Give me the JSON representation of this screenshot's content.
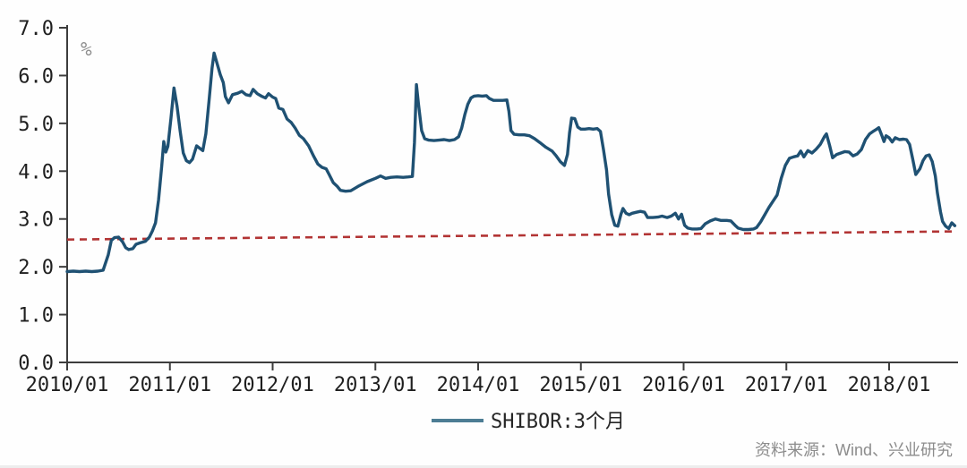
{
  "chart_data": {
    "type": "line",
    "title": "",
    "ylabel_unit": "%",
    "legend_label": "SHIBOR:3个月",
    "source_note": "资料来源：Wind、兴业研究",
    "x_axis": {
      "tick_labels": [
        "2010/01",
        "2011/01",
        "2012/01",
        "2013/01",
        "2014/01",
        "2015/01",
        "2016/01",
        "2017/01",
        "2018/01"
      ],
      "range_years_offset": [
        0,
        8.67
      ]
    },
    "y_axis": {
      "tick_labels": [
        "0.0",
        "1.0",
        "2.0",
        "3.0",
        "4.0",
        "5.0",
        "6.0",
        "7.0"
      ],
      "min": 0,
      "max": 7
    },
    "grid": false,
    "legend_position": "bottom-center",
    "series": [
      {
        "name": "SHIBOR:3个月",
        "color": "#1f5173",
        "legend_swatch_color": "#4d7d94",
        "x_unit": "years_after_2010_01",
        "y_unit": "percent",
        "points": [
          [
            0.0,
            1.9
          ],
          [
            0.06,
            1.91
          ],
          [
            0.12,
            1.9
          ],
          [
            0.18,
            1.91
          ],
          [
            0.24,
            1.9
          ],
          [
            0.3,
            1.91
          ],
          [
            0.35,
            1.93
          ],
          [
            0.4,
            2.25
          ],
          [
            0.43,
            2.55
          ],
          [
            0.46,
            2.61
          ],
          [
            0.5,
            2.62
          ],
          [
            0.54,
            2.52
          ],
          [
            0.57,
            2.4
          ],
          [
            0.6,
            2.36
          ],
          [
            0.64,
            2.38
          ],
          [
            0.67,
            2.47
          ],
          [
            0.71,
            2.5
          ],
          [
            0.76,
            2.53
          ],
          [
            0.8,
            2.62
          ],
          [
            0.83,
            2.75
          ],
          [
            0.86,
            2.92
          ],
          [
            0.89,
            3.4
          ],
          [
            0.92,
            4.1
          ],
          [
            0.94,
            4.62
          ],
          [
            0.96,
            4.4
          ],
          [
            0.98,
            4.52
          ],
          [
            1.01,
            5.1
          ],
          [
            1.04,
            5.74
          ],
          [
            1.07,
            5.35
          ],
          [
            1.1,
            4.84
          ],
          [
            1.13,
            4.38
          ],
          [
            1.16,
            4.22
          ],
          [
            1.19,
            4.18
          ],
          [
            1.22,
            4.25
          ],
          [
            1.26,
            4.53
          ],
          [
            1.29,
            4.48
          ],
          [
            1.32,
            4.43
          ],
          [
            1.35,
            4.78
          ],
          [
            1.38,
            5.46
          ],
          [
            1.41,
            6.15
          ],
          [
            1.43,
            6.47
          ],
          [
            1.46,
            6.25
          ],
          [
            1.49,
            6.02
          ],
          [
            1.52,
            5.85
          ],
          [
            1.54,
            5.56
          ],
          [
            1.57,
            5.43
          ],
          [
            1.61,
            5.6
          ],
          [
            1.66,
            5.63
          ],
          [
            1.7,
            5.67
          ],
          [
            1.74,
            5.6
          ],
          [
            1.78,
            5.58
          ],
          [
            1.81,
            5.71
          ],
          [
            1.85,
            5.62
          ],
          [
            1.89,
            5.57
          ],
          [
            1.93,
            5.53
          ],
          [
            1.96,
            5.62
          ],
          [
            2.0,
            5.55
          ],
          [
            2.03,
            5.52
          ],
          [
            2.06,
            5.32
          ],
          [
            2.1,
            5.29
          ],
          [
            2.14,
            5.09
          ],
          [
            2.18,
            5.02
          ],
          [
            2.22,
            4.9
          ],
          [
            2.26,
            4.75
          ],
          [
            2.3,
            4.68
          ],
          [
            2.35,
            4.53
          ],
          [
            2.4,
            4.31
          ],
          [
            2.44,
            4.15
          ],
          [
            2.48,
            4.08
          ],
          [
            2.52,
            4.05
          ],
          [
            2.55,
            3.93
          ],
          [
            2.59,
            3.76
          ],
          [
            2.63,
            3.68
          ],
          [
            2.66,
            3.6
          ],
          [
            2.71,
            3.58
          ],
          [
            2.76,
            3.59
          ],
          [
            2.83,
            3.68
          ],
          [
            2.92,
            3.78
          ],
          [
            3.0,
            3.85
          ],
          [
            3.05,
            3.9
          ],
          [
            3.1,
            3.85
          ],
          [
            3.15,
            3.87
          ],
          [
            3.21,
            3.88
          ],
          [
            3.27,
            3.87
          ],
          [
            3.32,
            3.88
          ],
          [
            3.36,
            3.89
          ],
          [
            3.38,
            4.6
          ],
          [
            3.4,
            5.81
          ],
          [
            3.42,
            5.4
          ],
          [
            3.45,
            4.85
          ],
          [
            3.48,
            4.68
          ],
          [
            3.52,
            4.65
          ],
          [
            3.57,
            4.64
          ],
          [
            3.62,
            4.65
          ],
          [
            3.67,
            4.66
          ],
          [
            3.72,
            4.64
          ],
          [
            3.77,
            4.66
          ],
          [
            3.81,
            4.72
          ],
          [
            3.84,
            4.9
          ],
          [
            3.87,
            5.18
          ],
          [
            3.9,
            5.4
          ],
          [
            3.93,
            5.53
          ],
          [
            3.96,
            5.57
          ],
          [
            4.0,
            5.58
          ],
          [
            4.04,
            5.57
          ],
          [
            4.08,
            5.58
          ],
          [
            4.11,
            5.52
          ],
          [
            4.15,
            5.48
          ],
          [
            4.2,
            5.48
          ],
          [
            4.24,
            5.48
          ],
          [
            4.28,
            5.49
          ],
          [
            4.3,
            5.25
          ],
          [
            4.32,
            4.85
          ],
          [
            4.35,
            4.77
          ],
          [
            4.4,
            4.76
          ],
          [
            4.45,
            4.76
          ],
          [
            4.5,
            4.74
          ],
          [
            4.55,
            4.68
          ],
          [
            4.6,
            4.6
          ],
          [
            4.66,
            4.5
          ],
          [
            4.72,
            4.42
          ],
          [
            4.76,
            4.32
          ],
          [
            4.8,
            4.2
          ],
          [
            4.84,
            4.12
          ],
          [
            4.87,
            4.35
          ],
          [
            4.89,
            4.8
          ],
          [
            4.91,
            5.11
          ],
          [
            4.94,
            5.1
          ],
          [
            4.97,
            4.92
          ],
          [
            5.0,
            4.88
          ],
          [
            5.04,
            4.88
          ],
          [
            5.08,
            4.89
          ],
          [
            5.12,
            4.88
          ],
          [
            5.16,
            4.89
          ],
          [
            5.19,
            4.83
          ],
          [
            5.22,
            4.45
          ],
          [
            5.25,
            4.03
          ],
          [
            5.27,
            3.52
          ],
          [
            5.3,
            3.09
          ],
          [
            5.33,
            2.87
          ],
          [
            5.36,
            2.85
          ],
          [
            5.39,
            3.1
          ],
          [
            5.41,
            3.22
          ],
          [
            5.44,
            3.12
          ],
          [
            5.47,
            3.09
          ],
          [
            5.5,
            3.12
          ],
          [
            5.54,
            3.14
          ],
          [
            5.58,
            3.16
          ],
          [
            5.62,
            3.14
          ],
          [
            5.65,
            3.03
          ],
          [
            5.7,
            3.03
          ],
          [
            5.75,
            3.04
          ],
          [
            5.79,
            3.06
          ],
          [
            5.84,
            3.03
          ],
          [
            5.88,
            3.06
          ],
          [
            5.92,
            3.12
          ],
          [
            5.95,
            3.0
          ],
          [
            5.98,
            3.1
          ],
          [
            6.01,
            2.87
          ],
          [
            6.04,
            2.81
          ],
          [
            6.08,
            2.79
          ],
          [
            6.13,
            2.79
          ],
          [
            6.17,
            2.8
          ],
          [
            6.21,
            2.9
          ],
          [
            6.26,
            2.96
          ],
          [
            6.31,
            3.0
          ],
          [
            6.36,
            2.97
          ],
          [
            6.42,
            2.97
          ],
          [
            6.46,
            2.96
          ],
          [
            6.5,
            2.87
          ],
          [
            6.53,
            2.81
          ],
          [
            6.58,
            2.78
          ],
          [
            6.63,
            2.78
          ],
          [
            6.68,
            2.79
          ],
          [
            6.71,
            2.82
          ],
          [
            6.75,
            2.94
          ],
          [
            6.79,
            3.09
          ],
          [
            6.83,
            3.24
          ],
          [
            6.87,
            3.37
          ],
          [
            6.91,
            3.5
          ],
          [
            6.95,
            3.85
          ],
          [
            6.99,
            4.12
          ],
          [
            7.03,
            4.27
          ],
          [
            7.07,
            4.3
          ],
          [
            7.11,
            4.32
          ],
          [
            7.14,
            4.42
          ],
          [
            7.17,
            4.3
          ],
          [
            7.21,
            4.43
          ],
          [
            7.25,
            4.38
          ],
          [
            7.29,
            4.46
          ],
          [
            7.33,
            4.56
          ],
          [
            7.37,
            4.72
          ],
          [
            7.39,
            4.78
          ],
          [
            7.42,
            4.55
          ],
          [
            7.45,
            4.28
          ],
          [
            7.49,
            4.35
          ],
          [
            7.53,
            4.38
          ],
          [
            7.57,
            4.41
          ],
          [
            7.61,
            4.4
          ],
          [
            7.65,
            4.32
          ],
          [
            7.69,
            4.36
          ],
          [
            7.73,
            4.45
          ],
          [
            7.77,
            4.66
          ],
          [
            7.81,
            4.78
          ],
          [
            7.85,
            4.84
          ],
          [
            7.88,
            4.88
          ],
          [
            7.9,
            4.91
          ],
          [
            7.93,
            4.74
          ],
          [
            7.95,
            4.62
          ],
          [
            7.97,
            4.74
          ],
          [
            8.0,
            4.7
          ],
          [
            8.03,
            4.61
          ],
          [
            8.06,
            4.7
          ],
          [
            8.1,
            4.66
          ],
          [
            8.14,
            4.67
          ],
          [
            8.17,
            4.66
          ],
          [
            8.2,
            4.56
          ],
          [
            8.23,
            4.25
          ],
          [
            8.26,
            3.93
          ],
          [
            8.3,
            4.05
          ],
          [
            8.33,
            4.22
          ],
          [
            8.36,
            4.32
          ],
          [
            8.39,
            4.34
          ],
          [
            8.42,
            4.2
          ],
          [
            8.45,
            3.9
          ],
          [
            8.47,
            3.55
          ],
          [
            8.5,
            3.15
          ],
          [
            8.52,
            2.95
          ],
          [
            8.55,
            2.85
          ],
          [
            8.58,
            2.8
          ],
          [
            8.61,
            2.92
          ],
          [
            8.64,
            2.86
          ]
        ]
      }
    ],
    "reference_line": {
      "name": "red-dashed-trend",
      "color": "#b23434",
      "style": "dashed",
      "points": [
        [
          0.0,
          2.57
        ],
        [
          8.66,
          2.74
        ]
      ]
    }
  },
  "colors": {
    "axis": "#3d3d3d",
    "tick_text": "#1f1f1f",
    "unit_text": "#8f8f8f",
    "source_text": "#8c8c8c",
    "background": "#fefefe",
    "bottom_strip": "#ededed"
  }
}
